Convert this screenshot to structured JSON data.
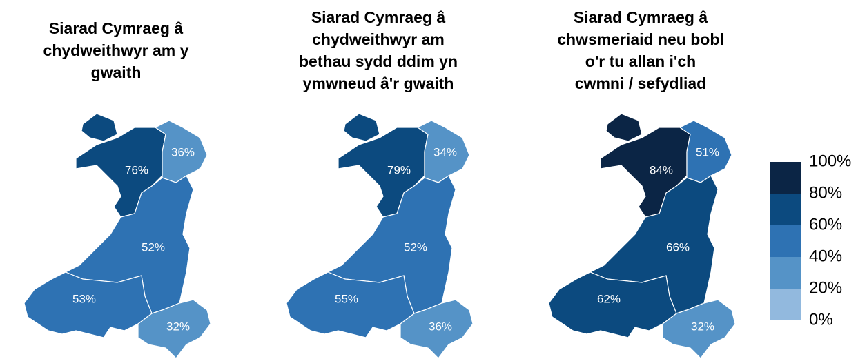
{
  "chart_data": [
    {
      "type": "map",
      "title": [
        "Siarad Cymraeg â",
        "chydweithwyr am y",
        "gwaith"
      ],
      "values": [
        76,
        36,
        52,
        53,
        32
      ],
      "value_labels": [
        "76%",
        "36%",
        "52%",
        "53%",
        "32%"
      ]
    },
    {
      "type": "map",
      "title": [
        "Siarad Cymraeg â",
        "chydweithwyr am",
        "bethau sydd ddim yn",
        "ymwneud â'r gwaith"
      ],
      "values": [
        79,
        34,
        52,
        55,
        36
      ],
      "value_labels": [
        "79%",
        "34%",
        "52%",
        "55%",
        "36%"
      ]
    },
    {
      "type": "map",
      "title": [
        "Siarad Cymraeg â",
        "chwsmeriaid neu bobl",
        "o'r tu allan i'ch",
        "cwmni / sefydliad"
      ],
      "values": [
        84,
        51,
        66,
        62,
        32
      ],
      "value_labels": [
        "84%",
        "51%",
        "66%",
        "62%",
        "32%"
      ]
    }
  ],
  "legend": {
    "colors": [
      "#92b9de",
      "#5593c7",
      "#2e72b3",
      "#0c4a7f",
      "#0b2545"
    ],
    "ticks": [
      {
        "value": 0,
        "label": "0%"
      },
      {
        "value": 20,
        "label": "20%"
      },
      {
        "value": 40,
        "label": "40%"
      },
      {
        "value": 60,
        "label": "60%"
      },
      {
        "value": 80,
        "label": "80%"
      },
      {
        "value": 100,
        "label": "100%"
      }
    ]
  }
}
